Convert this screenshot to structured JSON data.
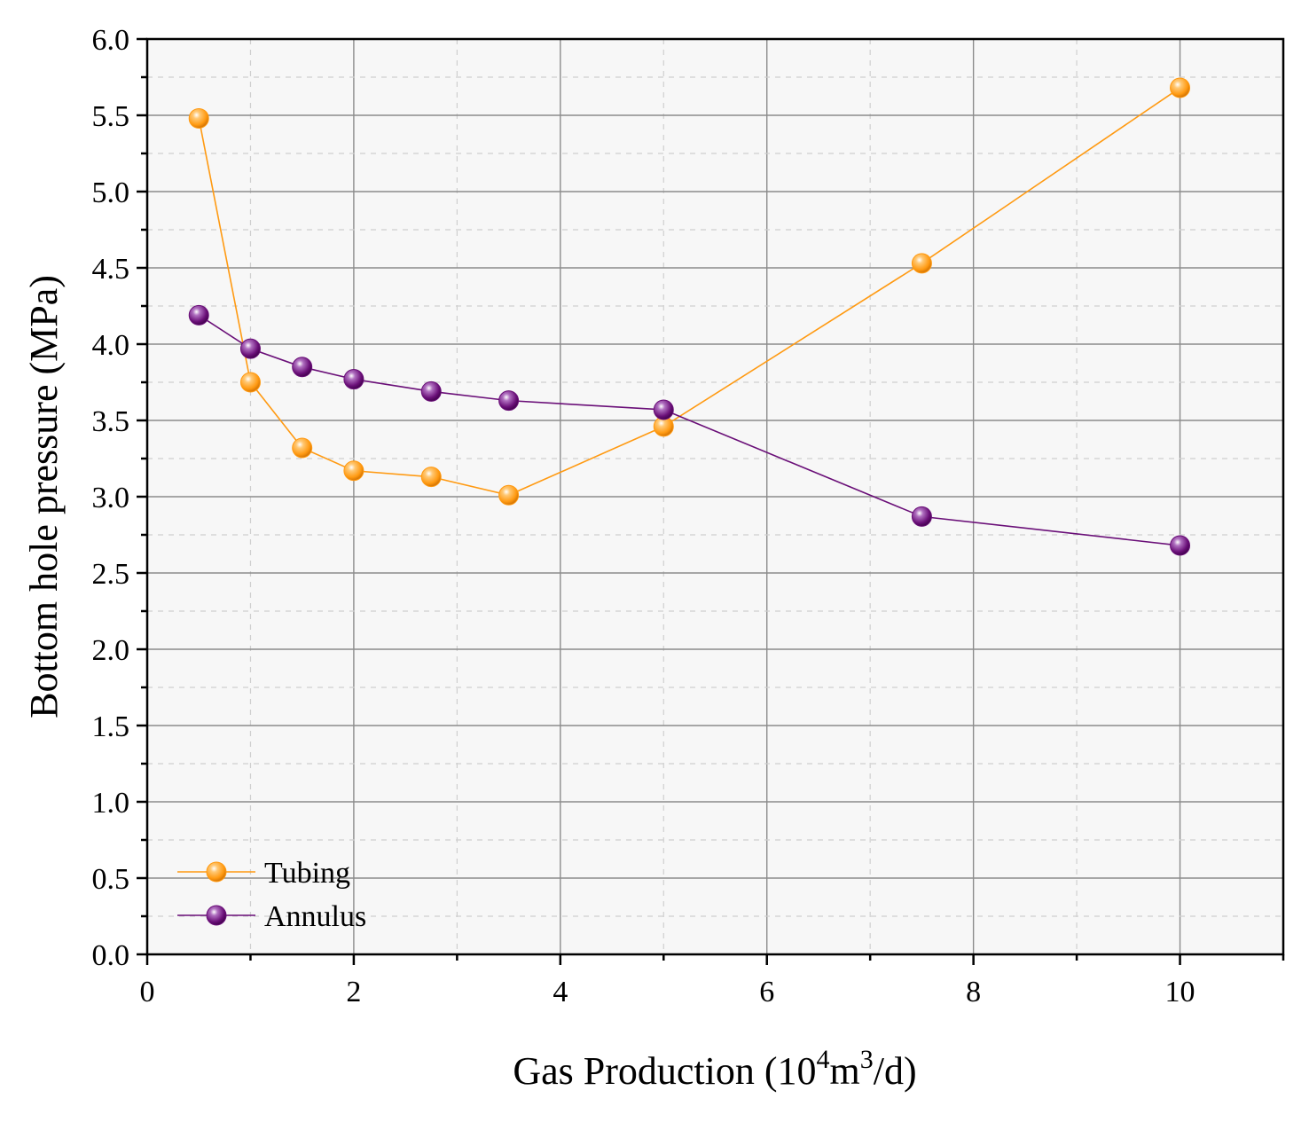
{
  "chart_data": {
    "type": "line",
    "xlabel": "Gas Production (10",
    "xlabel_sup1": "4",
    "xlabel_mid": "m",
    "xlabel_sup2": "3",
    "xlabel_end": "/d)",
    "ylabel": "Bottom hole pressure (MPa)",
    "xlim": [
      0,
      11
    ],
    "ylim": [
      0,
      6
    ],
    "x_ticks": [
      0,
      2,
      4,
      6,
      8,
      10
    ],
    "x_tick_labels": [
      "0",
      "2",
      "4",
      "6",
      "8",
      "10"
    ],
    "y_ticks": [
      0,
      0.5,
      1,
      1.5,
      2,
      2.5,
      3,
      3.5,
      4,
      4.5,
      5,
      5.5,
      6
    ],
    "y_tick_labels": [
      "0.0",
      "0.5",
      "1.0",
      "1.5",
      "2.0",
      "2.5",
      "3.0",
      "3.5",
      "4.0",
      "4.5",
      "5.0",
      "5.5",
      "6.0"
    ],
    "grid": true,
    "legend_position": "bottom-left",
    "series": [
      {
        "name": "Tubing",
        "color": "#ff9a12",
        "x": [
          0.5,
          1.0,
          1.5,
          2.0,
          2.75,
          3.5,
          5.0,
          7.5,
          10.0
        ],
        "y": [
          5.48,
          3.75,
          3.32,
          3.17,
          3.13,
          3.01,
          3.46,
          4.53,
          5.68
        ]
      },
      {
        "name": "Annulus",
        "color": "#6a0f78",
        "x": [
          0.5,
          1.0,
          1.5,
          2.0,
          2.75,
          3.5,
          5.0,
          7.5,
          10.0
        ],
        "y": [
          4.19,
          3.97,
          3.85,
          3.77,
          3.69,
          3.63,
          3.57,
          2.87,
          2.68
        ]
      }
    ]
  }
}
